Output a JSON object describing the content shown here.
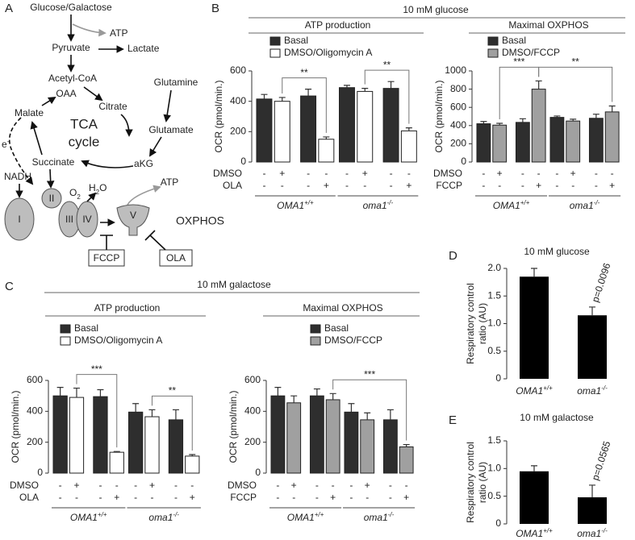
{
  "panel_letters": [
    "A",
    "B",
    "C",
    "D",
    "E"
  ],
  "panel_headers": {
    "B": "10 mM glucose",
    "C": "10 mM galactose"
  },
  "diagram": {
    "metabolites": [
      "Glucose/Galactose",
      "ATP",
      "Pyruvate",
      "Lactate",
      "Acetyl-CoA",
      "OAA",
      "Citrate",
      "Glutamine",
      "Malate",
      "Glutamate",
      "Succinate",
      "aKG",
      "NADH",
      "ATP"
    ],
    "cycle": [
      "TCA",
      "cycle"
    ],
    "electron": {
      "base": "e",
      "sup": "-"
    },
    "oxygen": {
      "base": "O",
      "sub": "2"
    },
    "water": {
      "base": "H",
      "sub": "2",
      "rest": "O"
    },
    "complexes": [
      "I",
      "II",
      "III",
      "IV",
      "V"
    ],
    "system": "OXPHOS",
    "inhibitors": [
      "FCCP",
      "OLA"
    ]
  },
  "chart_data": [
    {
      "type": "grouped",
      "title": "ATP production",
      "ylabel": "OCR (pmol/min.)",
      "categories": [
        null,
        null,
        null,
        null,
        null,
        null,
        null,
        null
      ],
      "series": [
        {
          "name": "Basal",
          "color": "#2e2e2e",
          "values": [
            415,
            null,
            435,
            null,
            490,
            null,
            485,
            null
          ],
          "errors": [
            30,
            null,
            45,
            null,
            15,
            null,
            45,
            null
          ]
        },
        {
          "name": "DMSO/Oligomycin A",
          "color": "#ffffff",
          "values": [
            null,
            400,
            null,
            150,
            null,
            465,
            null,
            205
          ],
          "errors": [
            null,
            25,
            null,
            15,
            null,
            20,
            null,
            20
          ]
        }
      ],
      "treatments": [
        {
          "label": "DMSO",
          "signs": [
            "-",
            "+",
            "-",
            "-",
            "-",
            "+",
            "-",
            "-"
          ]
        },
        {
          "label": "OLA",
          "signs": [
            "-",
            "-",
            "-",
            "+",
            "-",
            "-",
            "-",
            "+"
          ]
        }
      ],
      "groups": [
        {
          "name": "OMA1",
          "sup": "+/+"
        },
        {
          "name": "oma1",
          "sup": "-/-"
        }
      ],
      "significance": [
        {
          "label": "**",
          "bars": [
            1,
            3
          ]
        },
        {
          "label": "**",
          "bars": [
            5,
            7
          ]
        }
      ],
      "ylim": [
        0,
        600
      ],
      "yticks": [
        0,
        200,
        400,
        600
      ]
    },
    {
      "type": "grouped",
      "title": "Maximal OXPHOS",
      "ylabel": "OCR (pmol/min.)",
      "categories": [
        null,
        null,
        null,
        null,
        null,
        null,
        null,
        null
      ],
      "series": [
        {
          "name": "Basal",
          "color": "#2e2e2e",
          "values": [
            420,
            null,
            435,
            null,
            490,
            null,
            480,
            null
          ],
          "errors": [
            25,
            null,
            40,
            null,
            15,
            null,
            45,
            null
          ]
        },
        {
          "name": "DMSO/FCCP",
          "color": "#a0a0a0",
          "values": [
            null,
            405,
            null,
            800,
            null,
            450,
            null,
            550
          ],
          "errors": [
            null,
            20,
            null,
            90,
            null,
            20,
            null,
            65
          ]
        }
      ],
      "treatments": [
        {
          "label": "DMSO",
          "signs": [
            "-",
            "+",
            "-",
            "-",
            "-",
            "+",
            "-",
            "-"
          ]
        },
        {
          "label": "FCCP",
          "signs": [
            "-",
            "-",
            "-",
            "+",
            "-",
            "-",
            "-",
            "+"
          ]
        }
      ],
      "groups": [
        {
          "name": "OMA1",
          "sup": "+/+"
        },
        {
          "name": "oma1",
          "sup": "-/-"
        }
      ],
      "significance": [
        {
          "label": "***",
          "bars": [
            1,
            3
          ]
        },
        {
          "label": "**",
          "bars": [
            3,
            7
          ]
        }
      ],
      "ylim": [
        0,
        1000
      ],
      "yticks": [
        0,
        200,
        400,
        600,
        800,
        1000
      ]
    },
    {
      "type": "grouped",
      "title": "ATP production",
      "ylabel": "OCR (pmol/min.)",
      "categories": [
        null,
        null,
        null,
        null,
        null,
        null,
        null,
        null
      ],
      "series": [
        {
          "name": "Basal",
          "color": "#2e2e2e",
          "values": [
            500,
            null,
            495,
            null,
            395,
            null,
            345,
            null
          ],
          "errors": [
            55,
            null,
            45,
            null,
            55,
            null,
            65,
            null
          ]
        },
        {
          "name": "DMSO/Oligomycin A",
          "color": "#ffffff",
          "values": [
            null,
            490,
            null,
            135,
            null,
            365,
            null,
            110
          ],
          "errors": [
            null,
            60,
            null,
            5,
            null,
            45,
            null,
            10
          ]
        }
      ],
      "treatments": [
        {
          "label": "DMSO",
          "signs": [
            "-",
            "+",
            "-",
            "-",
            "-",
            "+",
            "-",
            "-"
          ]
        },
        {
          "label": "OLA",
          "signs": [
            "-",
            "-",
            "-",
            "+",
            "-",
            "-",
            "-",
            "+"
          ]
        }
      ],
      "groups": [
        {
          "name": "OMA1",
          "sup": "+/+"
        },
        {
          "name": "oma1",
          "sup": "-/-"
        }
      ],
      "significance": [
        {
          "label": "***",
          "bars": [
            1,
            3
          ]
        },
        {
          "label": "**",
          "bars": [
            5,
            7
          ]
        }
      ],
      "ylim": [
        0,
        600
      ],
      "yticks": [
        0,
        200,
        400,
        600
      ]
    },
    {
      "type": "grouped",
      "title": "Maximal OXPHOS",
      "ylabel": "OCR (pmol/min.)",
      "categories": [
        null,
        null,
        null,
        null,
        null,
        null,
        null,
        null
      ],
      "series": [
        {
          "name": "Basal",
          "color": "#2e2e2e",
          "values": [
            500,
            null,
            500,
            null,
            395,
            null,
            345,
            null
          ],
          "errors": [
            55,
            null,
            45,
            null,
            55,
            null,
            65,
            null
          ]
        },
        {
          "name": "DMSO/FCCP",
          "color": "#a0a0a0",
          "values": [
            null,
            455,
            null,
            475,
            null,
            345,
            null,
            170
          ],
          "errors": [
            null,
            45,
            null,
            40,
            null,
            45,
            null,
            15
          ]
        }
      ],
      "treatments": [
        {
          "label": "DMSO",
          "signs": [
            "-",
            "+",
            "-",
            "-",
            "-",
            "+",
            "-",
            "-"
          ]
        },
        {
          "label": "FCCP",
          "signs": [
            "-",
            "-",
            "-",
            "+",
            "-",
            "-",
            "-",
            "+"
          ]
        }
      ],
      "groups": [
        {
          "name": "OMA1",
          "sup": "+/+"
        },
        {
          "name": "oma1",
          "sup": "-/-"
        }
      ],
      "significance": [
        {
          "label": "***",
          "bars": [
            3,
            7
          ]
        }
      ],
      "ylim": [
        0,
        600
      ],
      "yticks": [
        0,
        200,
        400,
        600
      ]
    },
    {
      "type": "bar",
      "title": "10 mM glucose",
      "ylabel": [
        "Respiratory control",
        "ratio (AU)"
      ],
      "categories": [
        {
          "name": "OMA1",
          "sup": "+/+"
        },
        {
          "name": "oma1",
          "sup": "-/-"
        }
      ],
      "values": [
        1.85,
        1.15
      ],
      "errors": [
        0.15,
        0.15
      ],
      "color": "#000000",
      "annotation": "p=0.0096",
      "ylim": [
        0,
        2
      ],
      "yticks": [
        0,
        0.5,
        {
          "value": 1,
          "label": "1.0"
        },
        1.5,
        {
          "value": 2,
          "label": "2.0"
        }
      ]
    },
    {
      "type": "bar",
      "title": "10 mM galactose",
      "ylabel": [
        "Respiratory control",
        "ratio (AU)"
      ],
      "categories": [
        {
          "name": "OMA1",
          "sup": "+/+"
        },
        {
          "name": "oma1",
          "sup": "-/-"
        }
      ],
      "values": [
        0.95,
        0.48
      ],
      "errors": [
        0.1,
        0.22
      ],
      "color": "#000000",
      "annotation": "p=0.0565",
      "ylim": [
        0,
        1.5
      ],
      "yticks": [
        0,
        0.5,
        {
          "value": 1,
          "label": "1.0"
        },
        1.5
      ]
    }
  ]
}
